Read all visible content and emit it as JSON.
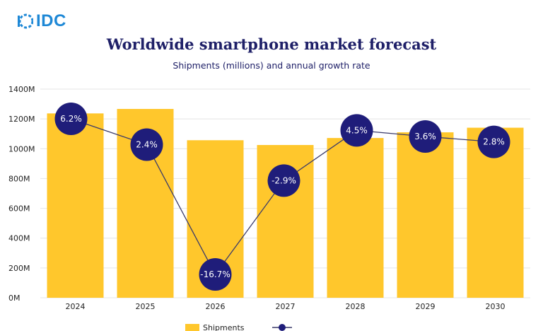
{
  "header": {
    "logo_text": "IDC",
    "title": "Worldwide smartphone market forecast",
    "subtitle": "Shipments (millions) and annual growth rate"
  },
  "colors": {
    "bar": "#ffc72c",
    "line": "#3a3a6a",
    "marker": "#1f1d7a",
    "logo": "#1e88d6",
    "title": "#1f2068"
  },
  "chart_data": {
    "type": "bar",
    "title": "Worldwide smartphone market forecast",
    "subtitle": "Shipments (millions) and annual growth rate",
    "categories": [
      "2024",
      "2025",
      "2026",
      "2027",
      "2028",
      "2029",
      "2030"
    ],
    "y_ticks": [
      "0M",
      "200M",
      "400M",
      "600M",
      "800M",
      "1000M",
      "1200M",
      "1400M"
    ],
    "ylim": [
      0,
      1400
    ],
    "grid": true,
    "series": [
      {
        "name": "Shipments",
        "type": "bar",
        "values": [
          1237,
          1267,
          1057,
          1025,
          1072,
          1110,
          1141
        ]
      },
      {
        "type": "line",
        "values": [
          6.2,
          2.4,
          -16.7,
          -2.9,
          4.5,
          3.6,
          2.8
        ],
        "labels": [
          "6.2%",
          "2.4%",
          "-16.7%",
          "-2.9%",
          "4.5%",
          "3.6%",
          "2.8%"
        ]
      }
    ],
    "legend": {
      "position": "bottom",
      "entries": [
        "Shipments"
      ]
    }
  }
}
